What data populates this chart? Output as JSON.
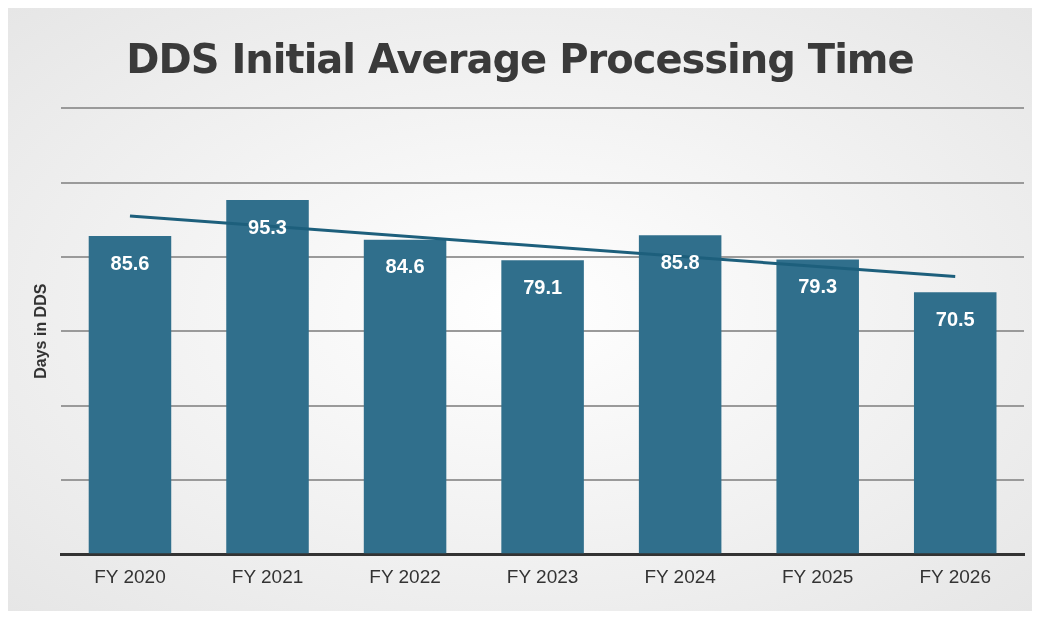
{
  "chart_data": {
    "type": "bar",
    "title": "DDS Initial Average Processing Time",
    "ylabel": "Days in DDS",
    "categories": [
      "FY 2020",
      "FY 2021",
      "FY 2022",
      "FY 2023",
      "FY 2024",
      "FY 2025",
      "FY 2026"
    ],
    "series": [
      {
        "color": "#306f8c",
        "values": [
          85.6,
          95.3,
          84.6,
          79.1,
          85.8,
          79.3,
          70.5
        ],
        "value_labels": [
          "85.6",
          "95.3",
          "84.6",
          "79.1",
          "85.8",
          "79.3",
          "70.5"
        ]
      },
      {
        "type": "line",
        "color": "#1d5f7c",
        "x": [
          "FY 2020",
          "FY 2026"
        ],
        "values": [
          91.0,
          74.7
        ],
        "marker": "none"
      }
    ],
    "ylim": [
      0,
      120
    ],
    "yticks": [
      {
        "value": 0,
        "label": null
      },
      {
        "value": 20,
        "label": null
      },
      {
        "value": 40,
        "label": null
      },
      {
        "value": 60,
        "label": null
      },
      {
        "value": 80,
        "label": null
      },
      {
        "value": 100,
        "label": null
      },
      {
        "value": 120,
        "label": null
      }
    ],
    "tick_labels": "x",
    "grid": "y",
    "legend": false
  }
}
